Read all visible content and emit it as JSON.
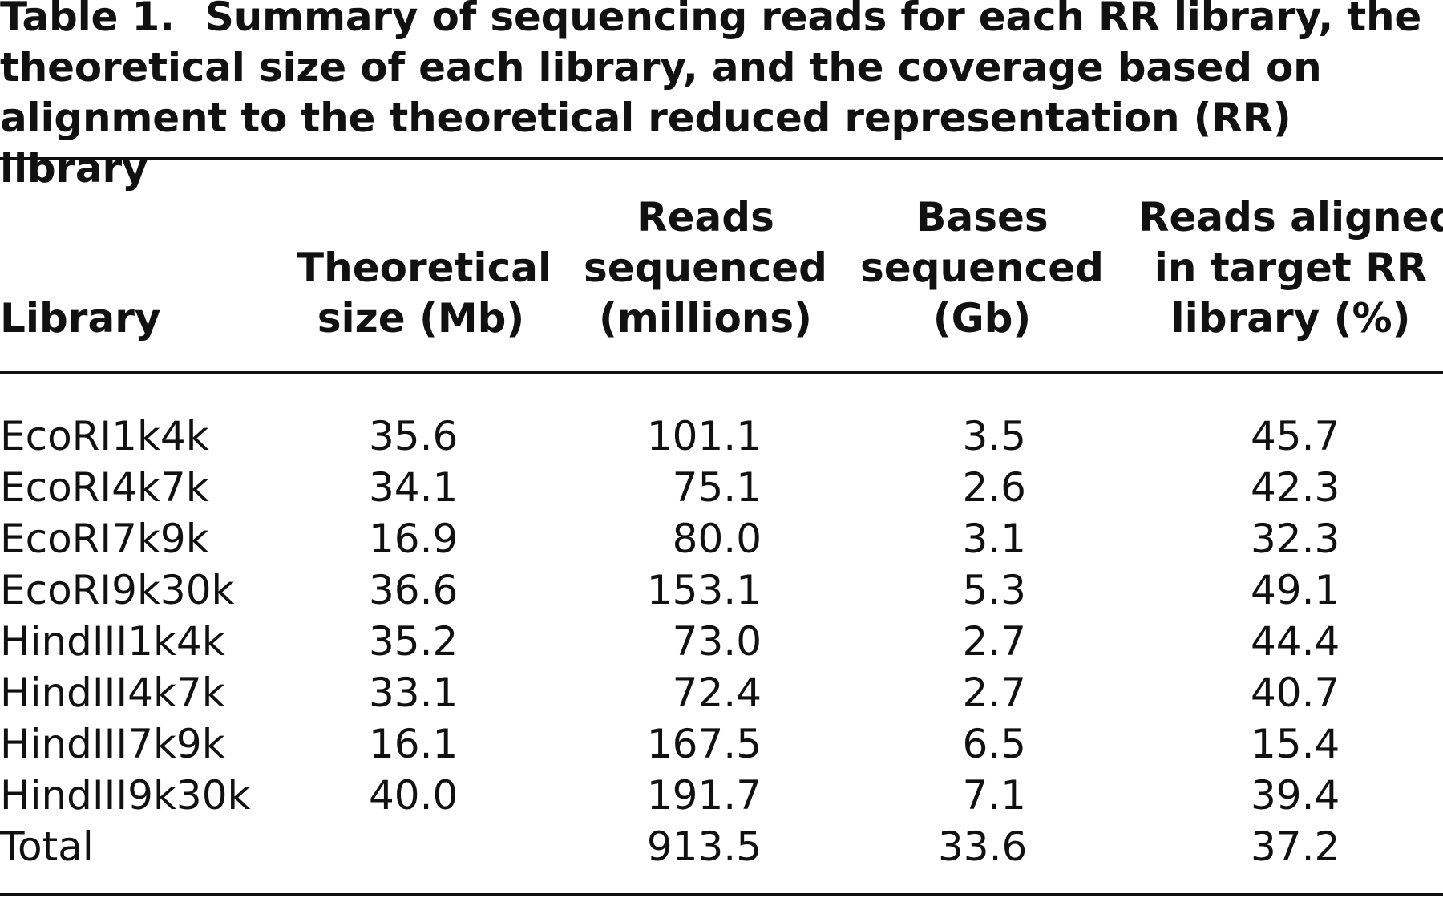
{
  "caption": {
    "label": "Table 1.",
    "text": "Summary of sequencing reads for each RR library, the theoretical size of each library, and the coverage based on alignment to the theoretical reduced representation (RR) library"
  },
  "headers": {
    "library": [
      "Library"
    ],
    "theoretical": [
      "Theoretical",
      "size (Mb)"
    ],
    "reads": [
      "Reads",
      "sequenced",
      "(millions)"
    ],
    "bases": [
      "Bases",
      "sequenced",
      "(Gb)"
    ],
    "aligned": [
      "Reads aligned",
      "in target RR",
      "library (%)"
    ]
  },
  "rows": [
    {
      "library": "EcoRI1k4k",
      "theoretical": "35.6",
      "reads": "101.1",
      "bases": "3.5",
      "aligned": "45.7"
    },
    {
      "library": "EcoRI4k7k",
      "theoretical": "34.1",
      "reads": "75.1",
      "bases": "2.6",
      "aligned": "42.3"
    },
    {
      "library": "EcoRI7k9k",
      "theoretical": "16.9",
      "reads": "80.0",
      "bases": "3.1",
      "aligned": "32.3"
    },
    {
      "library": "EcoRI9k30k",
      "theoretical": "36.6",
      "reads": "153.1",
      "bases": "5.3",
      "aligned": "49.1"
    },
    {
      "library": "HindIII1k4k",
      "theoretical": "35.2",
      "reads": "73.0",
      "bases": "2.7",
      "aligned": "44.4"
    },
    {
      "library": "HindIII4k7k",
      "theoretical": "33.1",
      "reads": "72.4",
      "bases": "2.7",
      "aligned": "40.7"
    },
    {
      "library": "HindIII7k9k",
      "theoretical": "16.1",
      "reads": "167.5",
      "bases": "6.5",
      "aligned": "15.4"
    },
    {
      "library": "HindIII9k30k",
      "theoretical": "40.0",
      "reads": "191.7",
      "bases": "7.1",
      "aligned": "39.4"
    },
    {
      "library": "Total",
      "theoretical": "",
      "reads": "913.5",
      "bases": "33.6",
      "aligned": "37.2"
    }
  ]
}
